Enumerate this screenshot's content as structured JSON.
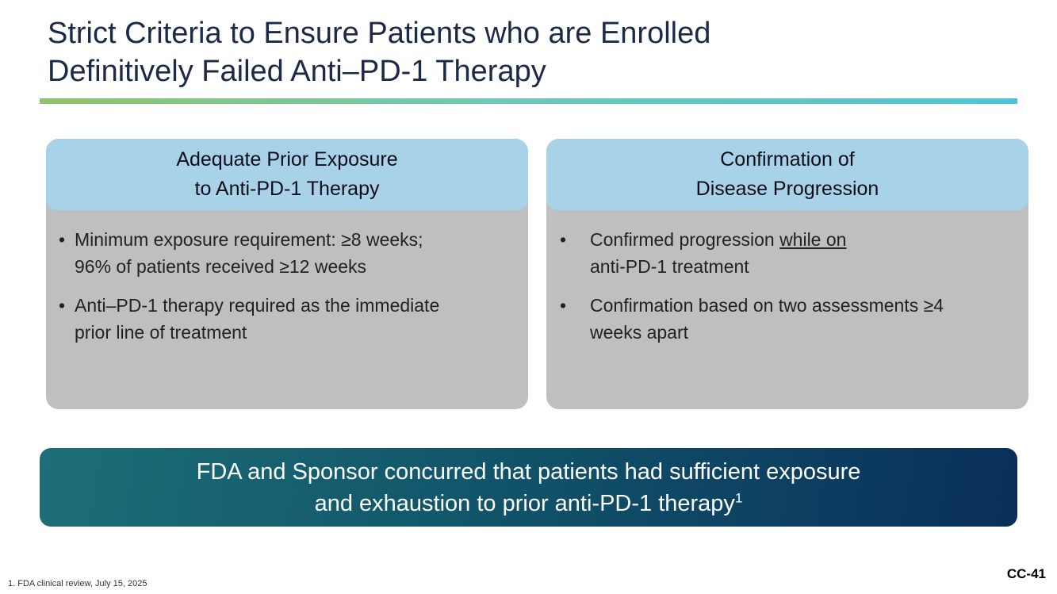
{
  "title": {
    "line1": "Strict Criteria to Ensure Patients who are Enrolled",
    "line2": "Definitively Failed Anti–PD-1 Therapy"
  },
  "cards": {
    "left": {
      "header_line1": "Adequate Prior Exposure",
      "header_line2": "to Anti-PD-1 Therapy",
      "bullets": [
        {
          "line1": "Minimum exposure requirement: ≥8 weeks;",
          "line2": "96% of patients received ≥12 weeks"
        },
        {
          "line1": "Anti–PD-1 therapy required as the immediate",
          "line2": "prior line of treatment"
        }
      ]
    },
    "right": {
      "header_line1": "Confirmation of",
      "header_line2": "Disease Progression",
      "bullets": [
        {
          "line1_prefix": "Confirmed progression ",
          "line1_underlined": "while on",
          "line2": "anti-PD-1 treatment"
        },
        {
          "line1": "Confirmation based on two assessments ≥4",
          "line2": "weeks apart"
        }
      ]
    }
  },
  "banner": {
    "line1": "FDA and Sponsor concurred that patients had sufficient exposure",
    "line2": "and exhaustion to prior anti-PD-1 therapy",
    "superscript": "1"
  },
  "footnote": "1. FDA clinical review, July 15, 2025",
  "slide_number": "CC-41",
  "bullet_symbol": "•"
}
